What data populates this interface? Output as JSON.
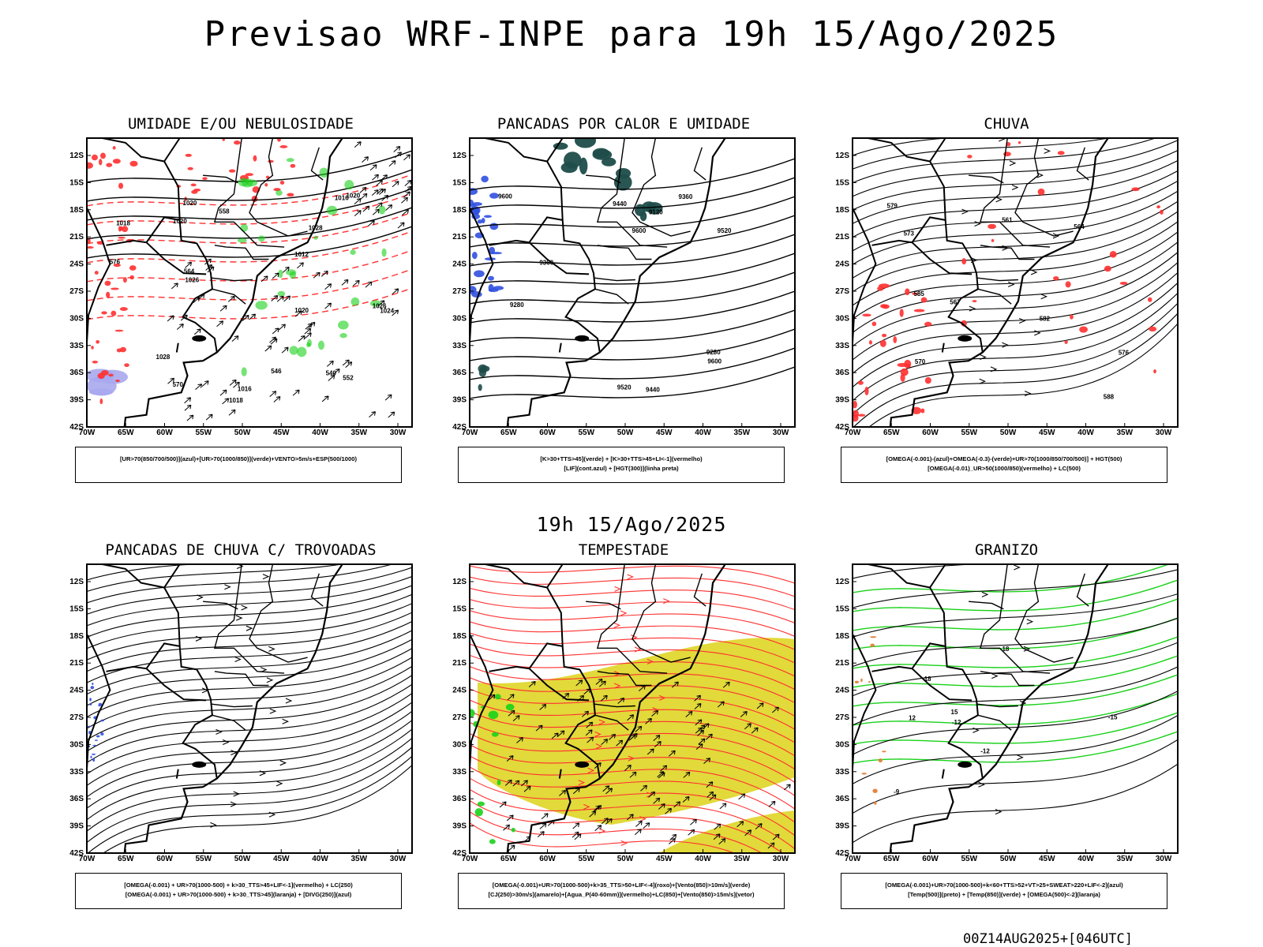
{
  "main_title": "Previsao WRF-INPE  para 19h 15/Ago/2025",
  "mid_title": "19h 15/Ago/2025",
  "footer": "00Z14AUG2025+[046UTC]",
  "lat_labels": [
    "12S",
    "15S",
    "18S",
    "21S",
    "24S",
    "27S",
    "30S",
    "33S",
    "36S",
    "39S",
    "42S"
  ],
  "lon_labels": [
    "70W",
    "65W",
    "60W",
    "55W",
    "50W",
    "45W",
    "40W",
    "35W",
    "30W"
  ],
  "panels": [
    {
      "title": "UMIDADE E/OU NEBULOSIDADE",
      "legend": [
        "[UR>70(850/700/500)](azul)+[UR>70(1000/850)](verde)+VENTO>5m/s+ESP(500/1000)"
      ],
      "map_labels": [
        "1018",
        "1020",
        "1012",
        "1016",
        "1016",
        "1018",
        "1020",
        "1026",
        "1020",
        "1024",
        "1026",
        "1020",
        "1028",
        "1028",
        "576",
        "570",
        "564",
        "558",
        "552",
        "546",
        "540"
      ]
    },
    {
      "title": "PANCADAS POR CALOR E UMIDADE",
      "legend": [
        "[K>30+TTS>45](verde) + [K>30+TTS>45+LI<-1](vermelho)",
        "[LIF](cont.azul) + [HGT(300)](linha preta)"
      ],
      "map_labels": [
        "9600",
        "9600",
        "9600",
        "9520",
        "9520",
        "9440",
        "9440",
        "9360",
        "9360",
        "9280",
        "9280",
        "9120"
      ]
    },
    {
      "title": "CHUVA",
      "legend": [
        "[OMEGA(-0.001)-(azul)+OMEGA(-0.3)-(verde)+UR>70(1000/850/700/500)] + HGT(500)",
        "[OMEGA(-0.01)_UR>50(1000/850)(vermelho) + LC(500)"
      ],
      "map_labels": [
        "588",
        "585",
        "582",
        "579",
        "576",
        "573",
        "570",
        "567",
        "564",
        "561"
      ]
    },
    {
      "title": "PANCADAS DE CHUVA C/ TROVOADAS",
      "legend": [
        "[OMEGA(-0.001) + UR>70(1000-500) + k>30_TTS>45+LIF<-1](vermelho) + LC(250)",
        "[OMEGA(-0.001) + UR>70(1000-500) + k>30_TTS>45](laranja) + [DIVG(250)](azul)"
      ],
      "map_labels": []
    },
    {
      "title": "TEMPESTADE",
      "legend": [
        "[OMEGA(-0.001)+UR>70(1000-500)+k>35_TTS>50+LIF<-4](roxo)+[Vento(850)>10m/s](verde)",
        "[CJ(250)>30m/s](amarelo)+[Agua_P(40-60mm)](vermelho)+LC(850)+[Vento(850)>15m/s](vetor)"
      ],
      "map_labels": []
    },
    {
      "title": "GRANIZO",
      "legend": [
        "[OMEGA(-0.001)+UR>70(1000-500)+k<60+TTS>52+VT>25+SWEAT>220+LIF<-2](azul)",
        "[Temp(500)](preto) + [Temp(850)](verde) + [OMEGA(500)<-2](laranja)"
      ],
      "map_labels": [
        "-12",
        "-12",
        "-15",
        "-18",
        "12",
        "15",
        "18",
        "-9"
      ]
    }
  ],
  "colors": {
    "contour_black": "#000000",
    "red": "#ff3030",
    "green": "#19d119",
    "blue": "#3050e0",
    "dark_teal": "#1e4d4a",
    "yellow": "#e2d93a",
    "lavender": "#a9a9ee",
    "orange": "#e07a30"
  }
}
